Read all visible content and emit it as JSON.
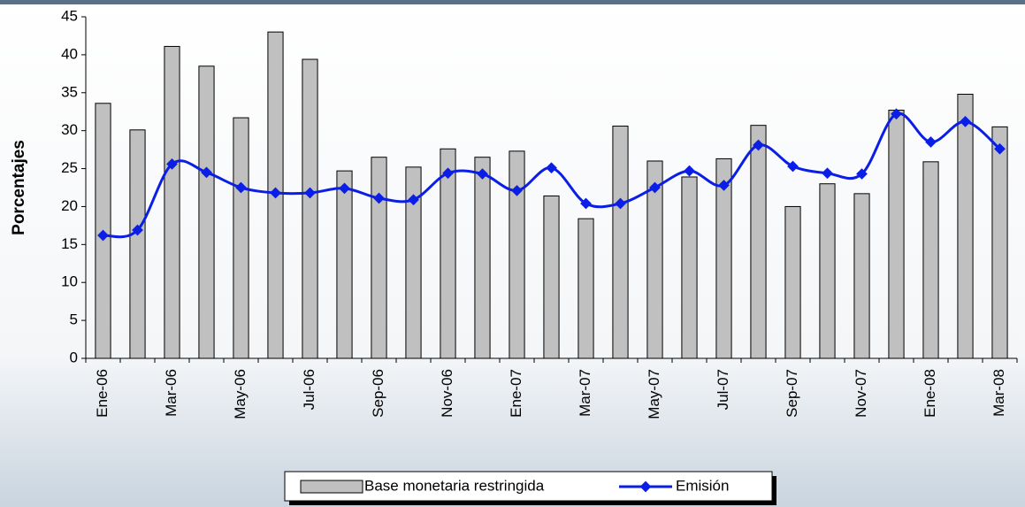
{
  "chart_data": {
    "type": "bar_line",
    "y_label": "Porcentajes",
    "categories": [
      "Ene-06",
      null,
      "Mar-06",
      null,
      "May-06",
      null,
      "Jul-06",
      null,
      "Sep-06",
      null,
      "Nov-06",
      null,
      "Ene-07",
      null,
      "Mar-07",
      null,
      "May-07",
      null,
      "Jul-07",
      null,
      "Sep-07",
      null,
      "Nov-07",
      null,
      "Ene-08",
      null,
      "Mar-08"
    ],
    "series": [
      {
        "name": "Base monetaria restringida",
        "type": "bar",
        "color": "#c0c0c0",
        "values": [
          33.6,
          30.1,
          41.1,
          38.5,
          31.7,
          43.0,
          39.4,
          24.7,
          26.5,
          25.2,
          27.6,
          26.5,
          27.3,
          21.4,
          18.4,
          30.6,
          26.0,
          23.9,
          26.3,
          30.7,
          20.0,
          23.0,
          21.7,
          32.7,
          25.9,
          34.8,
          30.5
        ]
      },
      {
        "name": "Emisión",
        "type": "line",
        "color": "#0a1ee6",
        "values": [
          16.2,
          16.9,
          25.6,
          24.5,
          22.5,
          21.8,
          21.8,
          22.4,
          21.1,
          20.9,
          24.4,
          24.3,
          22.1,
          25.1,
          20.4,
          20.4,
          22.5,
          24.7,
          22.8,
          28.1,
          25.3,
          24.4,
          24.3,
          32.2,
          28.5,
          31.2,
          27.6
        ]
      }
    ],
    "ylim": [
      0,
      45
    ],
    "yticks": [
      0,
      5,
      10,
      15,
      20,
      25,
      30,
      35,
      40,
      45
    ],
    "legend": "bottom"
  }
}
